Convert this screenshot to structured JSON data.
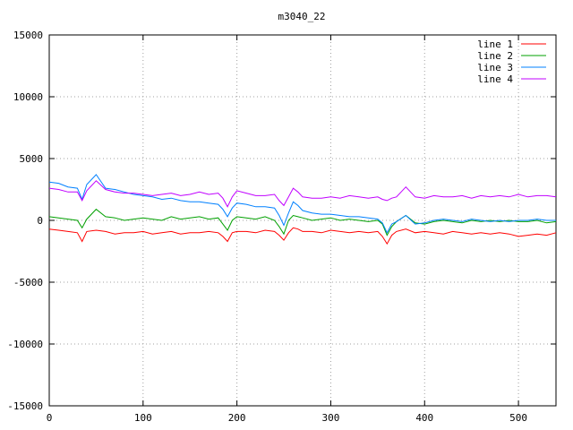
{
  "chart_data": {
    "type": "line",
    "title": "m3040_22",
    "xlabel": "",
    "ylabel": "",
    "xlim": [
      0,
      540
    ],
    "ylim": [
      -15000,
      15000
    ],
    "xticks": [
      0,
      100,
      200,
      300,
      400,
      500
    ],
    "yticks": [
      -15000,
      -10000,
      -5000,
      0,
      5000,
      10000,
      15000
    ],
    "grid": true,
    "legend_position": "top-right",
    "series": [
      {
        "name": "line 1",
        "color": "#ff0000",
        "x": [
          0,
          10,
          20,
          30,
          35,
          40,
          50,
          60,
          70,
          80,
          90,
          100,
          110,
          120,
          130,
          140,
          150,
          160,
          170,
          180,
          185,
          190,
          195,
          200,
          210,
          220,
          230,
          240,
          245,
          250,
          255,
          260,
          265,
          270,
          280,
          290,
          300,
          310,
          320,
          330,
          340,
          350,
          355,
          360,
          365,
          370,
          380,
          390,
          400,
          410,
          420,
          430,
          440,
          450,
          460,
          470,
          480,
          490,
          500,
          510,
          520,
          530,
          540
        ],
        "y": [
          -700,
          -800,
          -900,
          -1000,
          -1700,
          -900,
          -800,
          -900,
          -1100,
          -1000,
          -1000,
          -900,
          -1100,
          -1000,
          -900,
          -1100,
          -1000,
          -1000,
          -900,
          -1000,
          -1300,
          -1700,
          -1000,
          -900,
          -900,
          -1000,
          -800,
          -900,
          -1200,
          -1600,
          -1000,
          -600,
          -700,
          -900,
          -900,
          -1000,
          -800,
          -900,
          -1000,
          -900,
          -1000,
          -900,
          -1300,
          -1900,
          -1200,
          -900,
          -700,
          -1000,
          -900,
          -1000,
          -1100,
          -900,
          -1000,
          -1100,
          -1000,
          -1100,
          -1000,
          -1100,
          -1300,
          -1200,
          -1100,
          -1200,
          -1000
        ]
      },
      {
        "name": "line 2",
        "color": "#00a000",
        "x": [
          0,
          10,
          20,
          30,
          35,
          40,
          50,
          60,
          70,
          80,
          90,
          100,
          110,
          120,
          130,
          140,
          150,
          160,
          170,
          180,
          185,
          190,
          195,
          200,
          210,
          220,
          230,
          240,
          245,
          250,
          255,
          260,
          265,
          270,
          280,
          290,
          300,
          310,
          320,
          330,
          340,
          350,
          355,
          360,
          365,
          370,
          380,
          390,
          400,
          410,
          420,
          430,
          440,
          450,
          460,
          470,
          480,
          490,
          500,
          510,
          520,
          530,
          540
        ],
        "y": [
          300,
          200,
          100,
          0,
          -600,
          100,
          900,
          300,
          200,
          0,
          100,
          200,
          100,
          0,
          300,
          100,
          200,
          300,
          100,
          200,
          -300,
          -800,
          0,
          300,
          200,
          100,
          300,
          0,
          -500,
          -1100,
          0,
          400,
          300,
          200,
          0,
          100,
          200,
          0,
          100,
          0,
          -100,
          0,
          -300,
          -1200,
          -500,
          -100,
          400,
          -200,
          -300,
          -100,
          0,
          -100,
          -200,
          0,
          -100,
          0,
          -100,
          0,
          -100,
          -100,
          0,
          -200,
          -100
        ]
      },
      {
        "name": "line 3",
        "color": "#0080ff",
        "x": [
          0,
          10,
          20,
          30,
          35,
          40,
          50,
          60,
          70,
          80,
          90,
          100,
          110,
          120,
          130,
          140,
          150,
          160,
          170,
          180,
          185,
          190,
          195,
          200,
          210,
          220,
          230,
          240,
          245,
          250,
          255,
          260,
          265,
          270,
          280,
          290,
          300,
          310,
          320,
          330,
          340,
          350,
          355,
          360,
          365,
          370,
          380,
          390,
          400,
          410,
          420,
          430,
          440,
          450,
          460,
          470,
          480,
          490,
          500,
          510,
          520,
          530,
          540
        ],
        "y": [
          3100,
          3000,
          2700,
          2600,
          1700,
          2900,
          3700,
          2600,
          2500,
          2300,
          2100,
          2000,
          1900,
          1700,
          1800,
          1600,
          1500,
          1500,
          1400,
          1300,
          900,
          300,
          1000,
          1400,
          1300,
          1100,
          1100,
          1000,
          400,
          -400,
          600,
          1500,
          1200,
          800,
          600,
          500,
          500,
          400,
          300,
          300,
          200,
          100,
          -200,
          -1000,
          -300,
          -100,
          400,
          -300,
          -200,
          0,
          100,
          0,
          -100,
          100,
          0,
          -100,
          0,
          -100,
          0,
          0,
          100,
          0,
          0
        ]
      },
      {
        "name": "line 4",
        "color": "#c000ff",
        "x": [
          0,
          10,
          20,
          30,
          35,
          40,
          50,
          60,
          70,
          80,
          90,
          100,
          110,
          120,
          130,
          140,
          150,
          160,
          170,
          180,
          185,
          190,
          195,
          200,
          210,
          220,
          230,
          240,
          245,
          250,
          255,
          260,
          265,
          270,
          280,
          290,
          300,
          310,
          320,
          330,
          340,
          350,
          355,
          360,
          365,
          370,
          380,
          390,
          400,
          410,
          420,
          430,
          440,
          450,
          460,
          470,
          480,
          490,
          500,
          510,
          520,
          530,
          540
        ],
        "y": [
          2600,
          2500,
          2300,
          2300,
          1600,
          2400,
          3200,
          2500,
          2300,
          2200,
          2200,
          2100,
          2000,
          2100,
          2200,
          2000,
          2100,
          2300,
          2100,
          2200,
          1800,
          1100,
          1900,
          2400,
          2200,
          2000,
          2000,
          2100,
          1600,
          1200,
          1900,
          2600,
          2300,
          1900,
          1800,
          1800,
          1900,
          1800,
          2000,
          1900,
          1800,
          1900,
          1700,
          1600,
          1800,
          1900,
          2700,
          1900,
          1800,
          2000,
          1900,
          1900,
          2000,
          1800,
          2000,
          1900,
          2000,
          1900,
          2100,
          1900,
          2000,
          2000,
          1900
        ]
      }
    ]
  }
}
